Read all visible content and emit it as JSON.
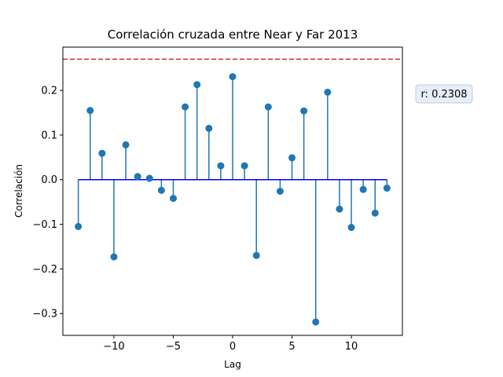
{
  "chart_data": {
    "type": "stem",
    "title": "Correlación cruzada entre Near y Far 2013",
    "xlabel": "Lag",
    "ylabel": "Correlación",
    "xlim": [
      -14.3,
      14.3
    ],
    "ylim": [
      -0.349,
      0.297
    ],
    "xticks": [
      -10,
      -5,
      0,
      5,
      10
    ],
    "yticks": [
      -0.3,
      -0.2,
      -0.1,
      0.0,
      0.1,
      0.2
    ],
    "x": [
      -13,
      -12,
      -11,
      -10,
      -9,
      -8,
      -7,
      -6,
      -5,
      -4,
      -3,
      -2,
      -1,
      0,
      1,
      2,
      3,
      4,
      5,
      6,
      7,
      8,
      9,
      10,
      11,
      12,
      13
    ],
    "values": [
      -0.105,
      0.155,
      0.059,
      -0.173,
      0.078,
      0.007,
      0.003,
      -0.024,
      -0.042,
      0.163,
      0.213,
      0.115,
      0.031,
      0.2308,
      0.031,
      -0.17,
      0.163,
      -0.026,
      0.049,
      0.154,
      -0.319,
      0.196,
      -0.066,
      -0.107,
      -0.022,
      -0.075,
      -0.019
    ],
    "threshold_line": {
      "value": 0.27,
      "color": "#d62728",
      "style": "dashed"
    },
    "marker_color": "#1f77b4",
    "baseline_color": "#0000ff",
    "annotation": {
      "text": "r: 0.2308",
      "bg": "#e8eef8"
    },
    "grid": false
  }
}
